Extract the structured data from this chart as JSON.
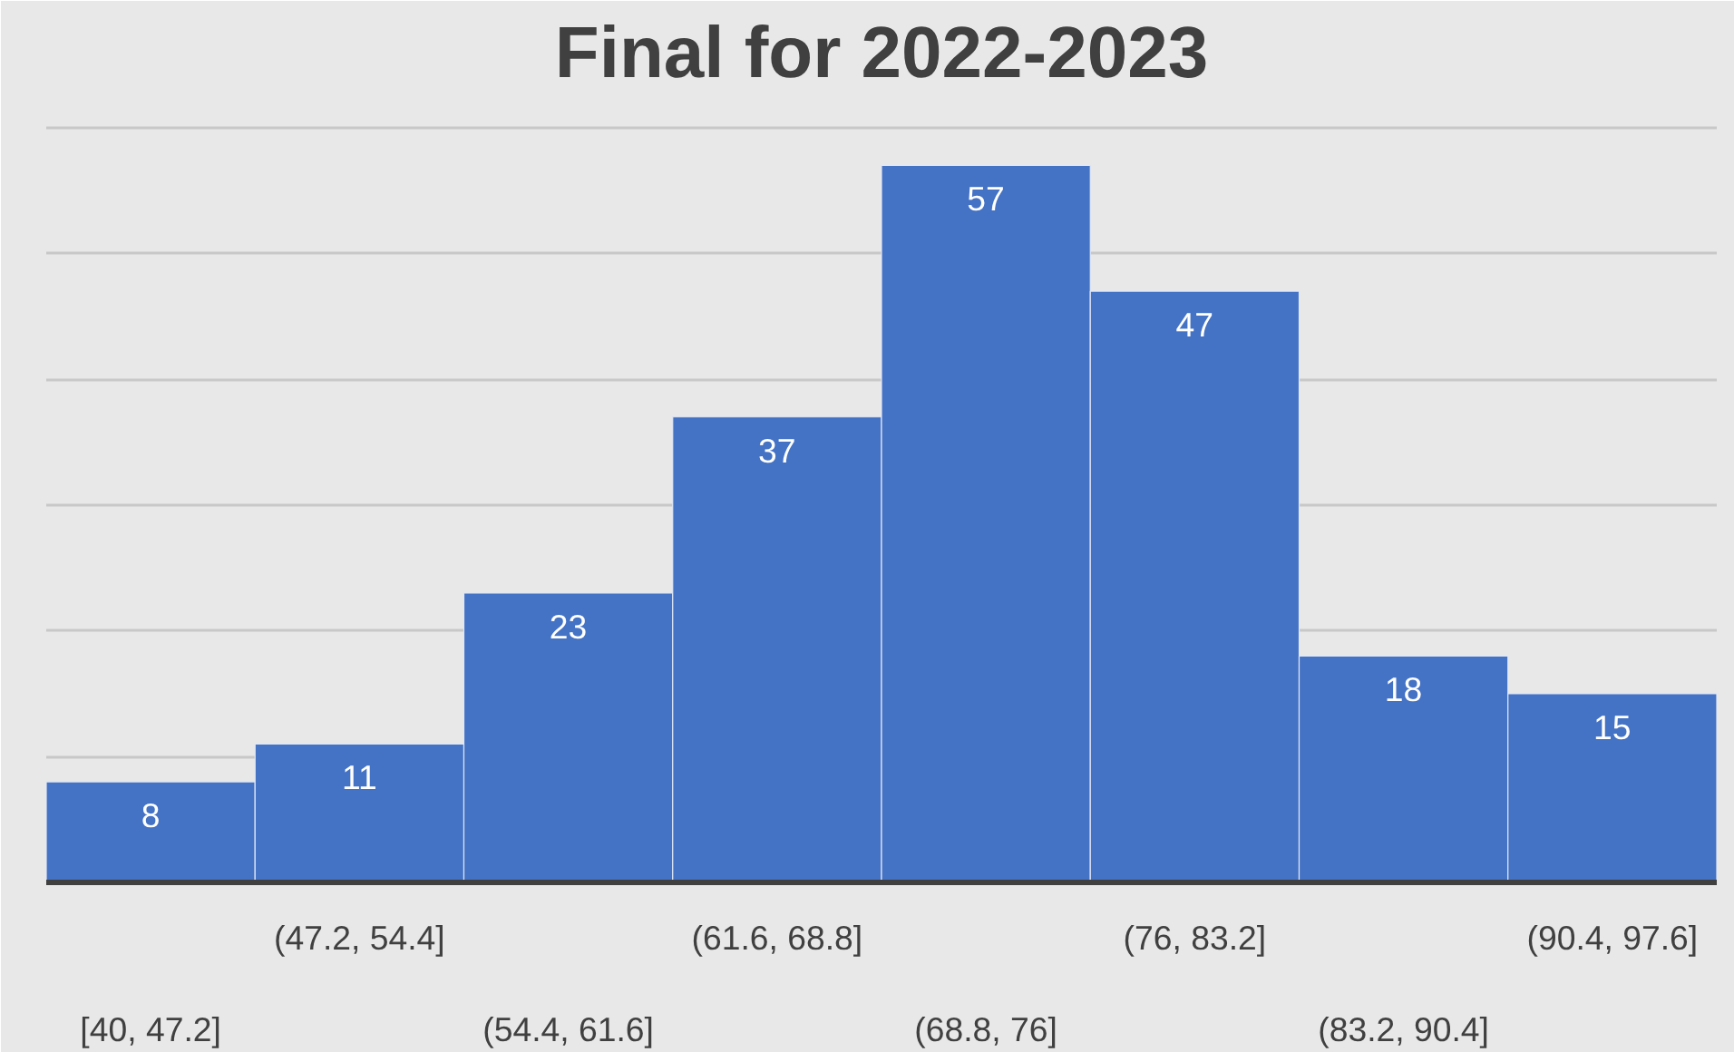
{
  "chart_data": {
    "type": "bar",
    "title": "Final for 2022-2023",
    "categories": [
      "[40, 47.2]",
      "(47.2, 54.4]",
      "(54.4, 61.6]",
      "(61.6, 68.8]",
      "(68.8, 76]",
      "(76, 83.2]",
      "(83.2, 90.4]",
      "(90.4, 97.6]"
    ],
    "values": [
      8,
      11,
      23,
      37,
      57,
      47,
      18,
      15
    ],
    "color": "#4472c4",
    "ylim": [
      0,
      62
    ],
    "yticks": [
      {
        "value": 0,
        "label": null
      },
      {
        "value": 10,
        "label": null
      },
      {
        "value": 20,
        "label": null
      },
      {
        "value": 30,
        "label": null
      },
      {
        "value": 40,
        "label": null
      },
      {
        "value": 50,
        "label": null
      },
      {
        "value": 60,
        "label": null
      }
    ],
    "grid": "y",
    "tick_labels": "x",
    "data_labels": true
  }
}
